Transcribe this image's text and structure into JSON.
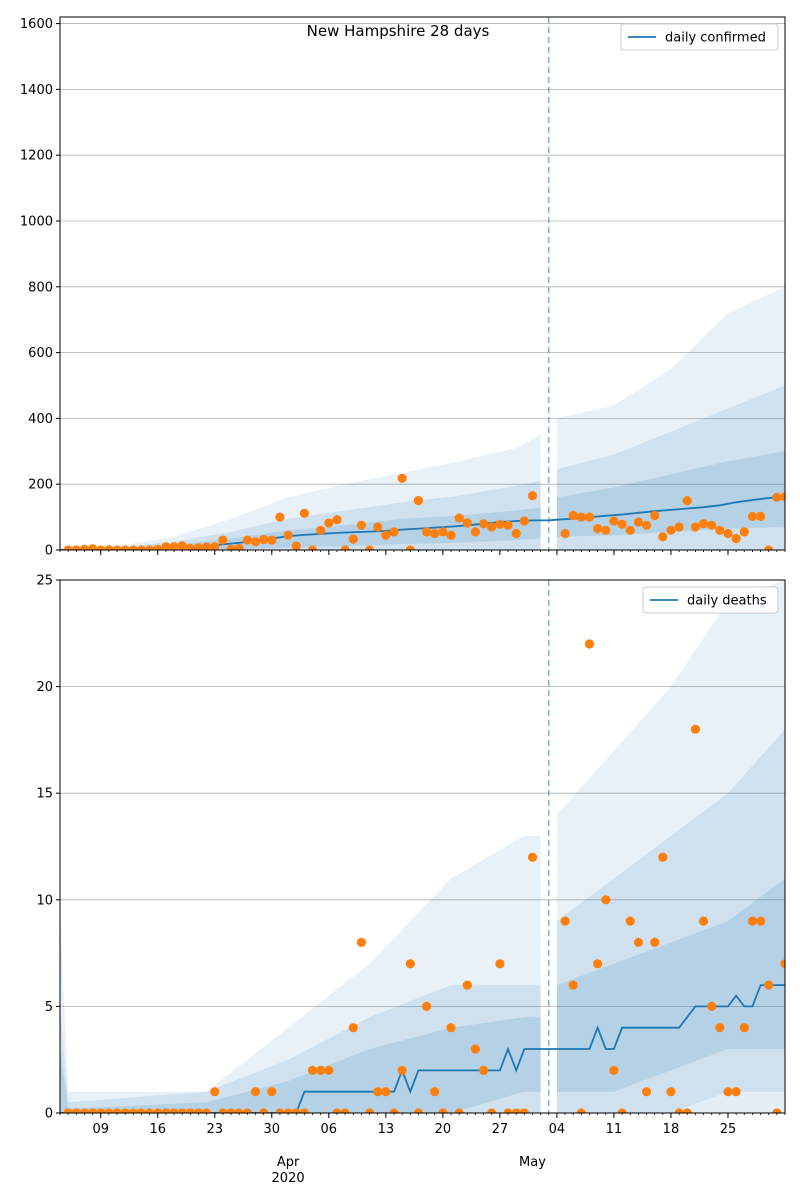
{
  "colors": {
    "line": "#1f77b4",
    "points": "#ff7f0e",
    "band": "#1f77b4",
    "grid": "#b0b0b0",
    "axis": "#000000"
  },
  "x_axis": {
    "day_ticks": [
      {
        "date": "2020-03-09",
        "label": "09"
      },
      {
        "date": "2020-03-16",
        "label": "16"
      },
      {
        "date": "2020-03-23",
        "label": "23"
      },
      {
        "date": "2020-03-30",
        "label": "30"
      },
      {
        "date": "2020-04-06",
        "label": "06"
      },
      {
        "date": "2020-04-13",
        "label": "13"
      },
      {
        "date": "2020-04-20",
        "label": "20"
      },
      {
        "date": "2020-04-27",
        "label": "27"
      },
      {
        "date": "2020-05-04",
        "label": "04"
      },
      {
        "date": "2020-05-11",
        "label": "11"
      },
      {
        "date": "2020-05-18",
        "label": "18"
      },
      {
        "date": "2020-05-25",
        "label": "25"
      }
    ],
    "month_labels": [
      {
        "date": "2020-04-01",
        "label": "Apr",
        "sub": "2020"
      },
      {
        "date": "2020-05-01",
        "label": "May",
        "sub": ""
      }
    ],
    "range": [
      "2020-03-04",
      "2020-06-01"
    ],
    "forecast_start": "2020-05-03"
  },
  "chart_data": [
    {
      "type": "line",
      "title": "New Hampshire 28 days",
      "xlabel": "",
      "ylabel": "",
      "ylim": [
        0,
        1620
      ],
      "yticks": [
        0,
        200,
        400,
        600,
        800,
        1000,
        1200,
        1400,
        1600
      ],
      "legend": {
        "position": "top-right",
        "label": "daily confirmed"
      },
      "grid": true,
      "series": [
        {
          "name": "daily confirmed",
          "x": [
            "2020-03-04",
            "2020-03-06",
            "2020-03-08",
            "2020-03-10",
            "2020-03-12",
            "2020-03-14",
            "2020-03-16",
            "2020-03-18",
            "2020-03-20",
            "2020-03-22",
            "2020-03-24",
            "2020-03-26",
            "2020-03-28",
            "2020-03-30",
            "2020-04-01",
            "2020-04-03",
            "2020-04-05",
            "2020-04-07",
            "2020-04-09",
            "2020-04-11",
            "2020-04-13",
            "2020-04-15",
            "2020-04-17",
            "2020-04-19",
            "2020-04-21",
            "2020-04-23",
            "2020-04-25",
            "2020-04-27",
            "2020-04-29",
            "2020-05-01",
            "2020-05-03",
            "2020-05-04",
            "2020-05-06",
            "2020-05-08",
            "2020-05-10",
            "2020-05-12",
            "2020-05-14",
            "2020-05-16",
            "2020-05-18",
            "2020-05-20",
            "2020-05-22",
            "2020-05-24",
            "2020-05-26",
            "2020-05-28",
            "2020-05-30",
            "2020-06-01"
          ],
          "values": [
            0,
            0,
            1,
            2,
            3,
            4,
            5,
            8,
            10,
            13,
            17,
            22,
            28,
            35,
            42,
            46,
            49,
            52,
            54,
            56,
            58,
            62,
            65,
            68,
            71,
            75,
            80,
            85,
            88,
            90,
            90,
            92,
            95,
            100,
            104,
            108,
            113,
            118,
            122,
            126,
            130,
            136,
            145,
            152,
            158,
            162
          ]
        }
      ],
      "band_dates": [
        "2020-03-04",
        "2020-03-11",
        "2020-03-18",
        "2020-03-25",
        "2020-04-01",
        "2020-04-08",
        "2020-04-15",
        "2020-04-22",
        "2020-04-29",
        "2020-05-02",
        "2020-05-04",
        "2020-05-11",
        "2020-05-18",
        "2020-05-25",
        "2020-06-01"
      ],
      "bands": [
        {
          "lower": [
            0,
            0,
            0,
            0,
            0,
            0,
            0,
            0,
            0,
            0,
            0,
            0,
            0,
            0,
            0
          ],
          "upper": [
            5,
            12,
            40,
            95,
            160,
            200,
            235,
            270,
            310,
            350,
            400,
            440,
            550,
            720,
            800
          ]
        },
        {
          "lower": [
            0,
            0,
            0,
            0,
            0,
            0,
            0,
            0,
            0,
            0,
            0,
            0,
            0,
            0,
            0
          ],
          "upper": [
            3,
            8,
            25,
            55,
            95,
            120,
            145,
            165,
            195,
            210,
            245,
            290,
            360,
            430,
            500
          ]
        },
        {
          "lower": [
            0,
            0,
            0,
            3,
            8,
            12,
            18,
            22,
            30,
            35,
            40,
            45,
            55,
            65,
            70
          ],
          "upper": [
            2,
            5,
            15,
            35,
            60,
            75,
            95,
            105,
            120,
            130,
            160,
            190,
            230,
            270,
            300
          ]
        }
      ],
      "points": {
        "x": [
          "2020-03-05",
          "2020-03-06",
          "2020-03-07",
          "2020-03-08",
          "2020-03-09",
          "2020-03-10",
          "2020-03-11",
          "2020-03-12",
          "2020-03-13",
          "2020-03-14",
          "2020-03-15",
          "2020-03-16",
          "2020-03-17",
          "2020-03-18",
          "2020-03-19",
          "2020-03-20",
          "2020-03-21",
          "2020-03-22",
          "2020-03-23",
          "2020-03-24",
          "2020-03-25",
          "2020-03-26",
          "2020-03-27",
          "2020-03-28",
          "2020-03-29",
          "2020-03-30",
          "2020-03-31",
          "2020-04-01",
          "2020-04-02",
          "2020-04-03",
          "2020-04-04",
          "2020-04-05",
          "2020-04-06",
          "2020-04-07",
          "2020-04-08",
          "2020-04-09",
          "2020-04-10",
          "2020-04-11",
          "2020-04-12",
          "2020-04-13",
          "2020-04-14",
          "2020-04-15",
          "2020-04-16",
          "2020-04-17",
          "2020-04-18",
          "2020-04-19",
          "2020-04-20",
          "2020-04-21",
          "2020-04-22",
          "2020-04-23",
          "2020-04-24",
          "2020-04-25",
          "2020-04-26",
          "2020-04-27",
          "2020-04-28",
          "2020-04-29",
          "2020-04-30",
          "2020-05-01",
          "2020-05-05",
          "2020-05-06",
          "2020-05-07",
          "2020-05-08",
          "2020-05-09",
          "2020-05-10",
          "2020-05-11",
          "2020-05-12",
          "2020-05-13",
          "2020-05-14",
          "2020-05-15",
          "2020-05-16",
          "2020-05-17",
          "2020-05-18",
          "2020-05-19",
          "2020-05-20",
          "2020-05-21",
          "2020-05-22",
          "2020-05-23",
          "2020-05-24",
          "2020-05-25",
          "2020-05-26",
          "2020-05-27",
          "2020-05-28",
          "2020-05-29",
          "2020-05-30",
          "2020-05-31",
          "2020-06-01"
        ],
        "values": [
          0,
          0,
          2,
          4,
          0,
          1,
          0,
          0,
          0,
          0,
          0,
          2,
          10,
          10,
          13,
          5,
          7,
          9,
          10,
          30,
          2,
          5,
          30,
          25,
          32,
          30,
          100,
          45,
          12,
          112,
          0,
          60,
          82,
          92,
          0,
          33,
          75,
          0,
          70,
          45,
          55,
          218,
          0,
          150,
          55,
          50,
          55,
          45,
          97,
          82,
          55,
          80,
          70,
          78,
          75,
          50,
          88,
          165,
          50,
          105,
          100,
          100,
          65,
          60,
          88,
          78,
          60,
          85,
          75,
          105,
          40,
          60,
          70,
          150,
          70,
          80,
          75,
          60,
          50,
          35,
          55,
          102,
          102,
          0,
          160,
          162
        ]
      }
    },
    {
      "type": "line",
      "title": "",
      "xlabel": "",
      "ylabel": "",
      "ylim": [
        0,
        25
      ],
      "yticks": [
        0,
        5,
        10,
        15,
        20,
        25
      ],
      "legend": {
        "position": "top-right",
        "label": "daily deaths"
      },
      "grid": true,
      "series": [
        {
          "name": "daily deaths",
          "x": [
            "2020-03-04",
            "2020-04-02",
            "2020-04-03",
            "2020-04-14",
            "2020-04-15",
            "2020-04-16",
            "2020-04-17",
            "2020-04-18",
            "2020-04-27",
            "2020-04-28",
            "2020-04-29",
            "2020-04-30",
            "2020-05-03",
            "2020-05-04",
            "2020-05-08",
            "2020-05-09",
            "2020-05-10",
            "2020-05-11",
            "2020-05-12",
            "2020-05-19",
            "2020-05-21",
            "2020-05-25",
            "2020-05-26",
            "2020-05-27",
            "2020-05-28",
            "2020-05-29",
            "2020-06-01"
          ],
          "values": [
            0,
            0,
            1,
            1,
            2,
            1,
            2,
            2,
            2,
            3,
            2,
            3,
            3,
            3,
            3,
            4,
            3,
            3,
            4,
            4,
            5,
            5,
            5.5,
            5,
            5,
            6,
            6
          ]
        }
      ],
      "band_dates": [
        "2020-03-04",
        "2020-03-05",
        "2020-03-22",
        "2020-04-01",
        "2020-04-11",
        "2020-04-21",
        "2020-04-30",
        "2020-05-02",
        "2020-05-04",
        "2020-05-11",
        "2020-05-18",
        "2020-05-25",
        "2020-06-01"
      ],
      "bands": [
        {
          "lower": [
            0,
            0,
            0,
            0,
            0,
            0,
            0,
            0,
            0,
            0,
            0,
            1,
            1
          ],
          "upper": [
            9.5,
            1,
            1,
            4,
            7,
            11,
            13,
            13,
            14,
            17,
            20,
            24,
            25
          ]
        },
        {
          "lower": [
            0,
            0,
            0,
            0,
            0,
            0,
            0,
            0,
            0,
            0,
            0,
            0,
            0
          ],
          "upper": [
            5,
            0.5,
            1,
            2.5,
            4.5,
            6,
            6,
            6,
            9,
            11,
            13,
            15,
            18
          ]
        },
        {
          "lower": [
            0,
            0,
            0,
            0,
            0,
            0,
            1,
            1,
            1,
            1,
            2,
            3,
            3
          ],
          "upper": [
            3,
            0.2,
            0.5,
            1.5,
            3,
            4,
            4.5,
            4.5,
            6,
            7,
            8,
            9,
            11
          ]
        }
      ],
      "points": {
        "x": [
          "2020-03-05",
          "2020-03-06",
          "2020-03-07",
          "2020-03-08",
          "2020-03-09",
          "2020-03-10",
          "2020-03-11",
          "2020-03-12",
          "2020-03-13",
          "2020-03-14",
          "2020-03-15",
          "2020-03-16",
          "2020-03-17",
          "2020-03-18",
          "2020-03-19",
          "2020-03-20",
          "2020-03-21",
          "2020-03-22",
          "2020-03-23",
          "2020-03-24",
          "2020-03-25",
          "2020-03-26",
          "2020-03-27",
          "2020-03-28",
          "2020-03-29",
          "2020-03-30",
          "2020-03-31",
          "2020-04-01",
          "2020-04-02",
          "2020-04-03",
          "2020-04-04",
          "2020-04-05",
          "2020-04-06",
          "2020-04-07",
          "2020-04-08",
          "2020-04-09",
          "2020-04-10",
          "2020-04-11",
          "2020-04-12",
          "2020-04-13",
          "2020-04-14",
          "2020-04-15",
          "2020-04-16",
          "2020-04-17",
          "2020-04-18",
          "2020-04-19",
          "2020-04-20",
          "2020-04-21",
          "2020-04-22",
          "2020-04-23",
          "2020-04-24",
          "2020-04-25",
          "2020-04-26",
          "2020-04-27",
          "2020-04-28",
          "2020-04-29",
          "2020-04-30",
          "2020-05-01",
          "2020-05-05",
          "2020-05-06",
          "2020-05-07",
          "2020-05-08",
          "2020-05-09",
          "2020-05-10",
          "2020-05-11",
          "2020-05-12",
          "2020-05-13",
          "2020-05-14",
          "2020-05-15",
          "2020-05-16",
          "2020-05-17",
          "2020-05-18",
          "2020-05-19",
          "2020-05-20",
          "2020-05-21",
          "2020-05-22",
          "2020-05-23",
          "2020-05-24",
          "2020-05-25",
          "2020-05-26",
          "2020-05-27",
          "2020-05-28",
          "2020-05-29",
          "2020-05-30",
          "2020-05-31",
          "2020-06-01"
        ],
        "values": [
          0,
          0,
          0,
          0,
          0,
          0,
          0,
          0,
          0,
          0,
          0,
          0,
          0,
          0,
          0,
          0,
          0,
          0,
          1,
          0,
          0,
          0,
          0,
          1,
          0,
          1,
          0,
          0,
          0,
          0,
          2,
          2,
          2,
          0,
          0,
          4,
          8,
          0,
          1,
          1,
          0,
          2,
          7,
          0,
          5,
          1,
          0,
          4,
          0,
          6,
          3,
          2,
          0,
          7,
          0,
          0,
          0,
          12,
          9,
          6,
          0,
          22,
          7,
          10,
          2,
          0,
          9,
          8,
          1,
          8,
          12,
          1,
          0,
          0,
          18,
          9,
          5,
          4,
          1,
          1,
          4,
          9,
          9,
          6,
          0,
          7
        ]
      }
    }
  ]
}
